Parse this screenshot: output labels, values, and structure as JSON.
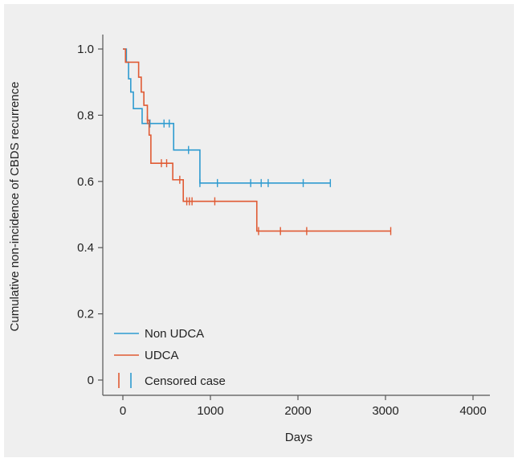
{
  "chart_data": {
    "type": "line",
    "subtype": "kaplan-meier-step",
    "title": "",
    "xlabel": "Days",
    "ylabel": "Cumulative non-incidence of CBDS recurrence",
    "xlim": [
      0,
      4000
    ],
    "ylim": [
      0,
      1.0
    ],
    "x_ticks": [
      0,
      1000,
      2000,
      3000,
      4000
    ],
    "x_tick_labels": [
      "0",
      "1000",
      "2000",
      "3000",
      "4000"
    ],
    "y_ticks": [
      0,
      0.2,
      0.4,
      0.6,
      0.8,
      1.0
    ],
    "y_tick_labels": [
      "0",
      "0.2",
      "0.4",
      "0.6",
      "0.8",
      "1.0"
    ],
    "grid": false,
    "legend_position": "bottom-left",
    "series": [
      {
        "name": "Non UDCA",
        "color": "#2e9bd0",
        "steps": [
          [
            0,
            1.0
          ],
          [
            40,
            0.96
          ],
          [
            65,
            0.91
          ],
          [
            90,
            0.87
          ],
          [
            120,
            0.82
          ],
          [
            220,
            0.775
          ],
          [
            580,
            0.695
          ],
          [
            880,
            0.595
          ],
          [
            2370,
            0.595
          ]
        ],
        "censored": [
          310,
          470,
          530,
          750,
          880,
          1080,
          1460,
          1580,
          1660,
          2060,
          2370
        ]
      },
      {
        "name": "UDCA",
        "color": "#e05a33",
        "steps": [
          [
            0,
            1.0
          ],
          [
            30,
            0.96
          ],
          [
            180,
            0.915
          ],
          [
            210,
            0.87
          ],
          [
            240,
            0.83
          ],
          [
            280,
            0.785
          ],
          [
            300,
            0.74
          ],
          [
            320,
            0.655
          ],
          [
            570,
            0.605
          ],
          [
            690,
            0.54
          ],
          [
            1530,
            0.45
          ],
          [
            3060,
            0.45
          ]
        ],
        "censored": [
          280,
          440,
          500,
          650,
          730,
          760,
          790,
          1050,
          1550,
          1800,
          2100,
          3060
        ]
      }
    ],
    "legend_censored_label": "Censored case"
  }
}
